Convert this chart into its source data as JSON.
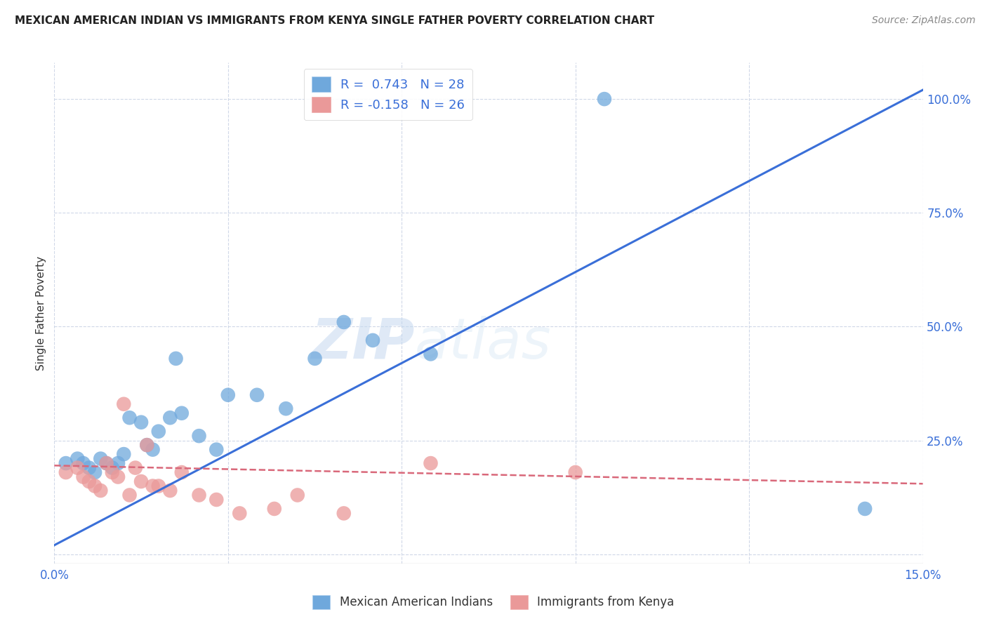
{
  "title": "MEXICAN AMERICAN INDIAN VS IMMIGRANTS FROM KENYA SINGLE FATHER POVERTY CORRELATION CHART",
  "source": "Source: ZipAtlas.com",
  "ylabel": "Single Father Poverty",
  "xlim": [
    0.0,
    0.15
  ],
  "ylim": [
    -0.02,
    1.08
  ],
  "x_ticks": [
    0.0,
    0.03,
    0.06,
    0.09,
    0.12,
    0.15
  ],
  "x_tick_labels": [
    "0.0%",
    "",
    "",
    "",
    "",
    "15.0%"
  ],
  "y_ticks_right": [
    0.0,
    0.25,
    0.5,
    0.75,
    1.0
  ],
  "y_tick_labels_right": [
    "",
    "25.0%",
    "50.0%",
    "75.0%",
    "100.0%"
  ],
  "legend_blue_label": "R =  0.743   N = 28",
  "legend_pink_label": "R = -0.158   N = 26",
  "legend_bottom_blue": "Mexican American Indians",
  "legend_bottom_pink": "Immigrants from Kenya",
  "blue_color": "#6fa8dc",
  "pink_color": "#ea9999",
  "line_blue_color": "#3a6fd8",
  "line_pink_color": "#d9687a",
  "watermark_zip": "ZIP",
  "watermark_atlas": "atlas",
  "blue_scatter_x": [
    0.002,
    0.004,
    0.005,
    0.006,
    0.007,
    0.008,
    0.009,
    0.01,
    0.011,
    0.012,
    0.013,
    0.015,
    0.016,
    0.017,
    0.018,
    0.02,
    0.021,
    0.022,
    0.025,
    0.028,
    0.03,
    0.035,
    0.04,
    0.045,
    0.05,
    0.055,
    0.065,
    0.14
  ],
  "blue_scatter_y": [
    0.2,
    0.21,
    0.2,
    0.19,
    0.18,
    0.21,
    0.2,
    0.19,
    0.2,
    0.22,
    0.3,
    0.29,
    0.24,
    0.23,
    0.27,
    0.3,
    0.43,
    0.31,
    0.26,
    0.23,
    0.35,
    0.35,
    0.32,
    0.43,
    0.51,
    0.47,
    0.44,
    0.1
  ],
  "pink_scatter_x": [
    0.002,
    0.004,
    0.005,
    0.006,
    0.007,
    0.008,
    0.009,
    0.01,
    0.011,
    0.012,
    0.013,
    0.014,
    0.015,
    0.016,
    0.017,
    0.018,
    0.02,
    0.022,
    0.025,
    0.028,
    0.032,
    0.038,
    0.042,
    0.05,
    0.065,
    0.09
  ],
  "pink_scatter_y": [
    0.18,
    0.19,
    0.17,
    0.16,
    0.15,
    0.14,
    0.2,
    0.18,
    0.17,
    0.33,
    0.13,
    0.19,
    0.16,
    0.24,
    0.15,
    0.15,
    0.14,
    0.18,
    0.13,
    0.12,
    0.09,
    0.1,
    0.13,
    0.09,
    0.2,
    0.18
  ],
  "blue_outlier_x": [
    0.095
  ],
  "blue_outlier_y": [
    1.0
  ],
  "blue_line_x": [
    0.0,
    0.15
  ],
  "blue_line_y": [
    0.02,
    1.02
  ],
  "pink_line_x": [
    0.0,
    0.15
  ],
  "pink_line_y": [
    0.195,
    0.155
  ],
  "background_color": "#ffffff",
  "grid_color": "#d0d8e8"
}
